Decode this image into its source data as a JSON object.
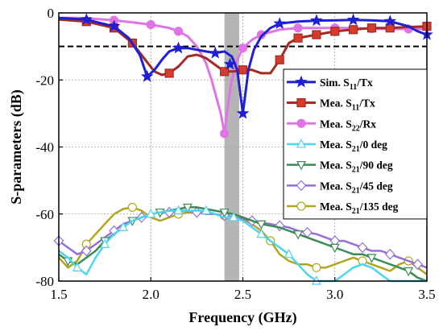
{
  "chart_data": {
    "type": "line",
    "title": "",
    "xlabel": "Frequency (GHz)",
    "ylabel": "S-parameters (dB)",
    "xlim": [
      1.5,
      3.5
    ],
    "ylim": [
      -80,
      0
    ],
    "xticks": [
      1.5,
      2.0,
      2.5,
      3.0,
      3.5
    ],
    "xtick_labels": [
      "1.5",
      "2.0",
      "2.5",
      "3.0",
      "3.5"
    ],
    "yticks": [
      0,
      -20,
      -40,
      -60,
      -80
    ],
    "ytick_labels": [
      "0",
      "-20",
      "-40",
      "-60",
      "-80"
    ],
    "grid": true,
    "legend_position": "right",
    "reference_line": {
      "y": -10,
      "style": "dashed",
      "color": "#000000"
    },
    "shaded_band": {
      "x": [
        2.4,
        2.48
      ],
      "color": "#b5b5b5"
    },
    "series": [
      {
        "name": "Sim. S11/Tx",
        "label_main": "Sim. S",
        "label_sub": "11",
        "label_tail": "/Tx",
        "color": "#1f1fd6",
        "marker": "star",
        "fill": "#1f1fd6",
        "width": 3,
        "x": [
          1.5,
          1.65,
          1.8,
          1.88,
          1.94,
          1.98,
          2.02,
          2.06,
          2.1,
          2.15,
          2.2,
          2.25,
          2.3,
          2.35,
          2.4,
          2.44,
          2.47,
          2.5,
          2.53,
          2.56,
          2.6,
          2.65,
          2.7,
          2.8,
          2.9,
          3.0,
          3.1,
          3.2,
          3.3,
          3.4,
          3.45,
          3.5
        ],
        "y": [
          -1.5,
          -2,
          -4,
          -7.5,
          -12.5,
          -19,
          -17,
          -14,
          -11.5,
          -10.5,
          -10.5,
          -11,
          -11.5,
          -12,
          -11.5,
          -13,
          -17,
          -30,
          -17,
          -11,
          -7,
          -4.5,
          -3.2,
          -2.6,
          -2.3,
          -2.2,
          -2.1,
          -2.2,
          -2.5,
          -4,
          -5.5,
          -6.5
        ],
        "marker_x": [
          1.65,
          1.8,
          1.98,
          2.15,
          2.35,
          2.43,
          2.5,
          2.7,
          2.9,
          3.1,
          3.3,
          3.5
        ],
        "marker_y": [
          -2,
          -4,
          -19,
          -10.5,
          -12,
          -15.3,
          -30,
          -3.2,
          -2.3,
          -2.1,
          -2.5,
          -6.5
        ]
      },
      {
        "name": "Mea. S11/Tx",
        "label_main": "Mea. S",
        "label_sub": "11",
        "label_tail": "/Tx",
        "color": "#a32b22",
        "marker": "square",
        "fill": "#d63b2c",
        "width": 3,
        "x": [
          1.5,
          1.65,
          1.8,
          1.9,
          1.97,
          2.02,
          2.06,
          2.1,
          2.15,
          2.2,
          2.25,
          2.3,
          2.35,
          2.4,
          2.45,
          2.5,
          2.55,
          2.6,
          2.65,
          2.7,
          2.75,
          2.8,
          2.9,
          3.0,
          3.1,
          3.2,
          3.3,
          3.4,
          3.5
        ],
        "y": [
          -2,
          -2.6,
          -4.5,
          -9,
          -14,
          -17.5,
          -18.5,
          -18,
          -16,
          -13,
          -12.5,
          -13.5,
          -15.5,
          -17.5,
          -17.5,
          -17,
          -17,
          -18,
          -18,
          -14,
          -9,
          -7.5,
          -6.5,
          -5.5,
          -5,
          -4.5,
          -4.5,
          -4.2,
          -4
        ],
        "marker_x": [
          1.65,
          1.8,
          1.9,
          2.1,
          2.4,
          2.5,
          2.7,
          2.8,
          2.9,
          3.0,
          3.1,
          3.2,
          3.3,
          3.5
        ],
        "marker_y": [
          -2.6,
          -4.5,
          -9,
          -18,
          -17.5,
          -17,
          -14,
          -7.5,
          -6.5,
          -5.5,
          -5,
          -4.5,
          -4.5,
          -4
        ]
      },
      {
        "name": "Mea. S22/Rx",
        "label_main": "Mea. S",
        "label_sub": "22",
        "label_tail": "/Rx",
        "color": "#e074e6",
        "marker": "circle",
        "fill": "#e074e6",
        "width": 3,
        "x": [
          1.5,
          1.6,
          1.7,
          1.8,
          1.9,
          2.0,
          2.1,
          2.15,
          2.2,
          2.25,
          2.3,
          2.33,
          2.36,
          2.38,
          2.4,
          2.42,
          2.44,
          2.47,
          2.5,
          2.55,
          2.6,
          2.7,
          2.8,
          2.9,
          3.0,
          3.1,
          3.2,
          3.3,
          3.4,
          3.5
        ],
        "y": [
          -1.5,
          -1.5,
          -1.8,
          -2.2,
          -2.8,
          -3.5,
          -4.5,
          -5.5,
          -7,
          -10,
          -15,
          -20,
          -26,
          -30,
          -36,
          -27,
          -20,
          -14,
          -10.5,
          -8,
          -6.5,
          -5,
          -4.5,
          -4.5,
          -4.5,
          -4.5,
          -4.7,
          -4.8,
          -4.8,
          -4.8
        ],
        "marker_x": [
          1.8,
          2.0,
          2.15,
          2.4,
          2.5,
          2.6,
          2.8,
          3.0,
          3.2,
          3.4
        ],
        "marker_y": [
          -2.2,
          -3.5,
          -5.5,
          -36,
          -10.5,
          -6.5,
          -4.5,
          -4.5,
          -4.7,
          -4.8
        ]
      },
      {
        "name": "Mea. S21/0 deg",
        "label_main": "Mea. S",
        "label_sub": "21",
        "label_tail": "/0 deg",
        "color": "#4fd4ef",
        "marker": "triangle-up",
        "fill": "#ffffff",
        "width": 2.5,
        "x": [
          1.5,
          1.55,
          1.6,
          1.65,
          1.7,
          1.75,
          1.8,
          1.85,
          1.9,
          1.95,
          2.0,
          2.05,
          2.1,
          2.15,
          2.2,
          2.25,
          2.3,
          2.35,
          2.4,
          2.45,
          2.5,
          2.55,
          2.6,
          2.65,
          2.7,
          2.75,
          2.8,
          2.85,
          2.9,
          2.95,
          3.0,
          3.05,
          3.1,
          3.15,
          3.2,
          3.25,
          3.3,
          3.35,
          3.4,
          3.45,
          3.5
        ],
        "y": [
          -71,
          -73,
          -76,
          -78,
          -73,
          -69,
          -66,
          -64,
          -62,
          -61,
          -60,
          -59.5,
          -59,
          -59,
          -59,
          -59,
          -59,
          -60,
          -61,
          -61,
          -62,
          -64,
          -66,
          -68,
          -70,
          -72,
          -75,
          -78,
          -80,
          -80,
          -80,
          -78,
          -76,
          -75,
          -76,
          -78,
          -80,
          -80,
          -80,
          -80,
          -80
        ],
        "marker_x": [
          1.6,
          1.75,
          1.85,
          2.0,
          2.15,
          2.3,
          2.45,
          2.6,
          2.75,
          2.9
        ],
        "marker_y": [
          -76,
          -69,
          -64,
          -60,
          -59,
          -59,
          -61,
          -66,
          -72,
          -80
        ]
      },
      {
        "name": "Mea. S21/90 deg",
        "label_main": "Mea. S",
        "label_sub": "21",
        "label_tail": "/90 deg",
        "color": "#3b8b57",
        "marker": "triangle-down",
        "fill": "#ffffff",
        "width": 2.5,
        "x": [
          1.5,
          1.55,
          1.6,
          1.65,
          1.7,
          1.75,
          1.8,
          1.85,
          1.9,
          1.95,
          2.0,
          2.05,
          2.1,
          2.15,
          2.2,
          2.25,
          2.3,
          2.35,
          2.4,
          2.45,
          2.5,
          2.55,
          2.6,
          2.65,
          2.7,
          2.75,
          2.8,
          2.85,
          2.9,
          2.95,
          3.0,
          3.05,
          3.1,
          3.15,
          3.2,
          3.25,
          3.3,
          3.35,
          3.4,
          3.45,
          3.5
        ],
        "y": [
          -72,
          -74,
          -75,
          -73,
          -71,
          -68,
          -66,
          -64,
          -62,
          -61,
          -60,
          -59.5,
          -59,
          -58.5,
          -58,
          -58,
          -58.5,
          -59,
          -59.5,
          -60,
          -61,
          -62,
          -63,
          -63.5,
          -64,
          -65,
          -66,
          -67,
          -68,
          -69,
          -70,
          -71,
          -72,
          -72,
          -73,
          -74,
          -75,
          -76,
          -77,
          -79,
          -80
        ],
        "marker_x": [
          1.55,
          1.75,
          1.9,
          2.05,
          2.2,
          2.4,
          2.6,
          2.8,
          3.0,
          3.2,
          3.4
        ],
        "marker_y": [
          -74,
          -68,
          -62,
          -59.5,
          -58,
          -59.5,
          -63,
          -66,
          -70,
          -73,
          -77
        ]
      },
      {
        "name": "Mea. S21/45 deg",
        "label_main": "Mea. S",
        "label_sub": "21",
        "label_tail": "/45 deg",
        "color": "#9370d8",
        "marker": "diamond",
        "fill": "#ffffff",
        "width": 2.5,
        "x": [
          1.5,
          1.55,
          1.6,
          1.65,
          1.7,
          1.75,
          1.8,
          1.85,
          1.9,
          1.95,
          2.0,
          2.05,
          2.1,
          2.15,
          2.2,
          2.25,
          2.3,
          2.35,
          2.4,
          2.45,
          2.5,
          2.55,
          2.6,
          2.65,
          2.7,
          2.75,
          2.8,
          2.85,
          2.9,
          2.95,
          3.0,
          3.05,
          3.1,
          3.15,
          3.2,
          3.25,
          3.3,
          3.35,
          3.4,
          3.45,
          3.5
        ],
        "y": [
          -68,
          -70,
          -72,
          -71,
          -69,
          -67,
          -65,
          -63,
          -62,
          -61,
          -60,
          -59.5,
          -59.5,
          -59,
          -59,
          -59.5,
          -60,
          -60,
          -60.5,
          -61,
          -61.5,
          -62,
          -62.5,
          -63,
          -63.5,
          -64,
          -65,
          -65.5,
          -66,
          -67,
          -68,
          -68,
          -69,
          -70,
          -71,
          -71,
          -72,
          -73,
          -74,
          -75,
          -76
        ],
        "marker_x": [
          1.5,
          1.65,
          1.8,
          1.95,
          2.1,
          2.25,
          2.4,
          2.55,
          2.7,
          2.85,
          3.0,
          3.15,
          3.3,
          3.45
        ],
        "marker_y": [
          -68,
          -71,
          -65,
          -61,
          -59.5,
          -59.5,
          -60.5,
          -62,
          -63.5,
          -65.5,
          -68,
          -70,
          -72,
          -75
        ]
      },
      {
        "name": "Mea. S21/135 deg",
        "label_main": "Mea. S",
        "label_sub": "21",
        "label_tail": "/135 deg",
        "color": "#b3a51c",
        "marker": "circle",
        "fill": "#ffffff",
        "width": 2.5,
        "x": [
          1.5,
          1.55,
          1.6,
          1.65,
          1.7,
          1.75,
          1.8,
          1.85,
          1.9,
          1.95,
          2.0,
          2.05,
          2.1,
          2.15,
          2.2,
          2.25,
          2.3,
          2.35,
          2.4,
          2.45,
          2.5,
          2.55,
          2.6,
          2.65,
          2.7,
          2.75,
          2.8,
          2.85,
          2.9,
          2.95,
          3.0,
          3.05,
          3.1,
          3.15,
          3.2,
          3.25,
          3.3,
          3.35,
          3.4,
          3.45,
          3.5
        ],
        "y": [
          -73,
          -76,
          -74,
          -69,
          -66,
          -63,
          -60,
          -58.5,
          -58,
          -59,
          -61,
          -62,
          -61,
          -60,
          -59.5,
          -59.5,
          -59.5,
          -60,
          -60.5,
          -61,
          -61.5,
          -63,
          -65,
          -68,
          -72,
          -74,
          -75,
          -75,
          -76,
          -76,
          -75,
          -74,
          -73,
          -74,
          -75,
          -76,
          -77,
          -75,
          -74,
          -76,
          -78
        ],
        "marker_x": [
          1.65,
          1.9,
          2.15,
          2.4,
          2.65,
          2.9,
          3.15,
          3.4
        ],
        "marker_y": [
          -69,
          -58,
          -60,
          -60.5,
          -68,
          -76,
          -74,
          -74
        ]
      }
    ]
  }
}
